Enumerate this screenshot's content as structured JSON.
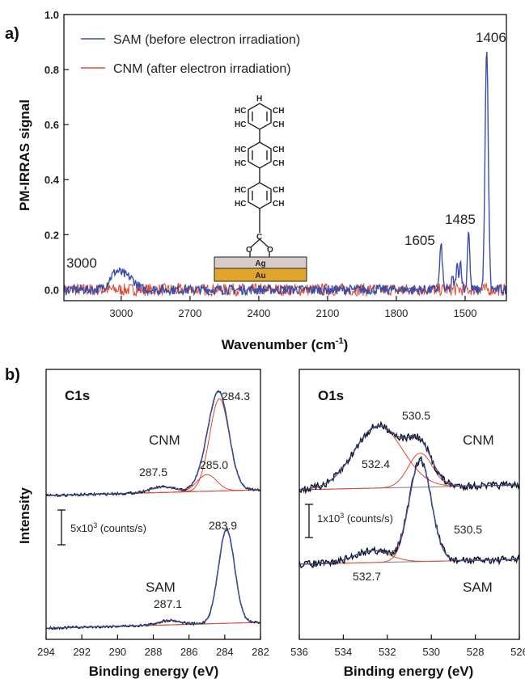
{
  "colors": {
    "blue": "#3b4fa8",
    "red": "#e0462f",
    "black": "#111111",
    "grey": "#777777",
    "au": "#e0a52a",
    "ag": "#d7ccc8"
  },
  "chart_data": [
    {
      "type": "line",
      "panel_label": "a)",
      "xlabel": "Wavenumber (cm",
      "xlabel_sup": "-1",
      "xlabel_close": ")",
      "ylabel": "PM-IRRAS signal",
      "xlim": [
        3250,
        1320
      ],
      "ylim": [
        -0.04,
        1.0
      ],
      "x_reversed": true,
      "x_ticks": [
        3000,
        2700,
        2400,
        2100,
        1800,
        1500
      ],
      "y_ticks": [
        0.0,
        0.2,
        0.4,
        0.6,
        0.8,
        1.0
      ],
      "y_tick_labels": [
        "0.0",
        "0.2",
        "0.4",
        "0.6",
        "0.8",
        "1.0"
      ],
      "legend_position": "top-left",
      "series": [
        {
          "name": "SAM (before electron irradiation)",
          "color": "blue",
          "peaks": [
            {
              "x": 3020,
              "y": 0.065,
              "w": 30
            },
            {
              "x": 2960,
              "y": 0.035,
              "w": 25
            },
            {
              "x": 1605,
              "y": 0.16,
              "w": 6
            },
            {
              "x": 1555,
              "y": 0.04,
              "w": 5
            },
            {
              "x": 1535,
              "y": 0.085,
              "w": 5
            },
            {
              "x": 1520,
              "y": 0.1,
              "w": 5
            },
            {
              "x": 1485,
              "y": 0.22,
              "w": 5
            },
            {
              "x": 1406,
              "y": 0.87,
              "w": 7
            }
          ]
        },
        {
          "name": "CNM (after electron irradiation)",
          "color": "red",
          "peaks": []
        }
      ],
      "annotations": [
        "3000",
        "1605",
        "1485",
        "1406"
      ],
      "molecule": {
        "atoms": [
          "H",
          "HC",
          "CH",
          "HC",
          "CH",
          "HC",
          "CH",
          "HC",
          "CH",
          "HC",
          "CH",
          "HC",
          "CH",
          "C",
          "O",
          "O"
        ],
        "ag": "Ag",
        "au": "Au"
      }
    },
    {
      "type": "line",
      "panel_label": "b)",
      "title": "C1s",
      "xlabel": "Binding energy (eV)",
      "ylabel": "Intensity",
      "xlim": [
        294,
        282
      ],
      "x_reversed": true,
      "x_ticks": [
        294,
        292,
        290,
        288,
        286,
        284,
        282
      ],
      "scale_bar": "5x10",
      "scale_bar_sup": "3",
      "scale_bar_unit": " (counts/s)",
      "series": [
        {
          "name": "CNM",
          "components": [
            {
              "x": 284.3,
              "height": 1.0,
              "sigma": 0.55
            },
            {
              "x": 285.0,
              "height": 0.18,
              "sigma": 0.55
            },
            {
              "x": 287.5,
              "height": 0.06,
              "sigma": 0.7
            }
          ]
        },
        {
          "name": "SAM",
          "components": [
            {
              "x": 283.9,
              "height": 1.45,
              "sigma": 0.45
            },
            {
              "x": 287.1,
              "height": 0.07,
              "sigma": 0.6
            }
          ]
        }
      ],
      "annotations": [
        "284.3",
        "285.0",
        "287.5",
        "283.9",
        "287.1"
      ]
    },
    {
      "type": "line",
      "title": "O1s",
      "xlabel": "Binding energy (eV)",
      "xlim": [
        536,
        526
      ],
      "x_reversed": true,
      "x_ticks": [
        536,
        534,
        532,
        530,
        528,
        526
      ],
      "scale_bar": "1x10",
      "scale_bar_sup": "3",
      "scale_bar_unit": " (counts/s)",
      "series": [
        {
          "name": "CNM",
          "components": [
            {
              "x": 532.4,
              "height": 0.55,
              "sigma": 1.1
            },
            {
              "x": 530.5,
              "height": 0.3,
              "sigma": 0.55
            }
          ]
        },
        {
          "name": "SAM",
          "components": [
            {
              "x": 530.5,
              "height": 1.0,
              "sigma": 0.5
            },
            {
              "x": 532.7,
              "height": 0.12,
              "sigma": 0.8
            }
          ]
        }
      ],
      "annotations": [
        "530.5",
        "532.4",
        "530.5",
        "532.7"
      ]
    }
  ]
}
